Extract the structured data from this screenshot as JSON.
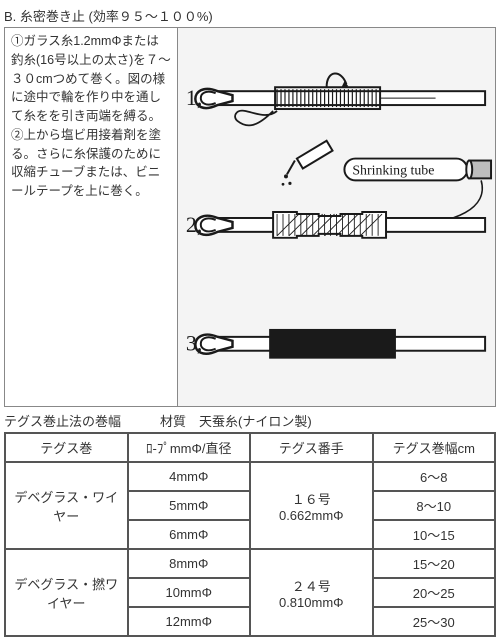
{
  "title": "B. 糸密巻き止 (効率９５～１００%)",
  "instructions": {
    "step1": "①ガラス糸1.2mmΦまたは釣糸(16号以上の太さ)を７～３０cmつめて巻く。図の様に途中で輪を作り中を通して糸をを引き両端を縛る。",
    "step2": "②上から塩ビ用接着剤を塗る。さらに糸保護のために収縮チューブまたは、ビニールテープを上に巻く。"
  },
  "diagram": {
    "labels": {
      "step1": "1,",
      "step2": "2,",
      "step3": "3,",
      "shrink": "Shrinking tube"
    },
    "colors": {
      "bg": "#f4f4f4",
      "stroke": "#1a1a1a",
      "fill_white": "#ffffff",
      "fill_black": "#1a1a1a",
      "fill_gray": "#bdbdbd"
    }
  },
  "table_caption": "テグス巻止法の巻幅　　　材質　天蚕糸(ナイロン製)",
  "table": {
    "headers": [
      "テグス巻",
      "ﾛ-ﾌﾟmmΦ/直径",
      "テグス番手",
      "テグス巻幅cm"
    ],
    "rows": [
      {
        "name": "デベグラス・ワイヤー",
        "ropes": [
          "4mmΦ",
          "5mmΦ",
          "6mmΦ"
        ],
        "gauge": "１６号\n0.662mmΦ",
        "widths": [
          "6～8",
          "8～10",
          "10～15"
        ]
      },
      {
        "name": "デベグラス・撚ワイヤー",
        "ropes": [
          "8mmΦ",
          "10mmΦ",
          "12mmΦ"
        ],
        "gauge": "２４号\n0.810mmΦ",
        "widths": [
          "15～20",
          "20～25",
          "25～30"
        ]
      }
    ]
  }
}
